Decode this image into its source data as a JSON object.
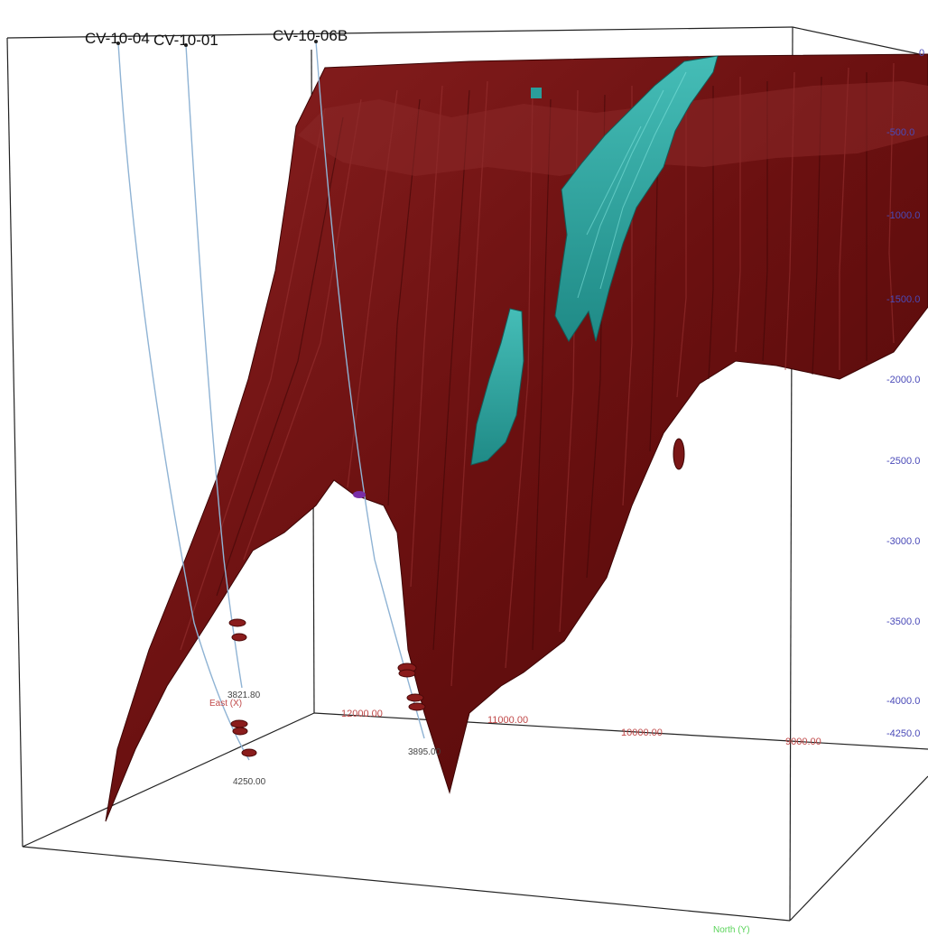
{
  "colors": {
    "surface_dark": "#5a0b0b",
    "surface": "#7a1616",
    "surface_light": "#a23a3a",
    "ore_body": "#2a9e9b",
    "ore_body_light": "#5fd6cf",
    "drillhole": "#8fb3d4",
    "box_edge": "#222222",
    "z_axis": "#4a4ab8",
    "east_axis": "#c04848",
    "north_axis": "#5ad45a",
    "marker": "#8a1c1c",
    "collar_marker": "#7a2fa8"
  },
  "drillholes": [
    {
      "name": "CV-10-04",
      "end_depth": "4250.00"
    },
    {
      "name": "CV-10-01",
      "end_depth": "3821.80"
    },
    {
      "name": "CV-10-06B",
      "end_depth": "3895.00"
    }
  ],
  "axes": {
    "z_ticks": [
      "0",
      "-500.0",
      "-1000.0",
      "-1500.0",
      "-2000.0",
      "-2500.0",
      "-3000.0",
      "-3500.0",
      "-4000.0",
      "-4250.0"
    ],
    "east_ticks": [
      "12000.00",
      "11000.00",
      "10000.00",
      "9000.00"
    ],
    "east_title": "East (X)",
    "north_title": "North (Y)"
  }
}
